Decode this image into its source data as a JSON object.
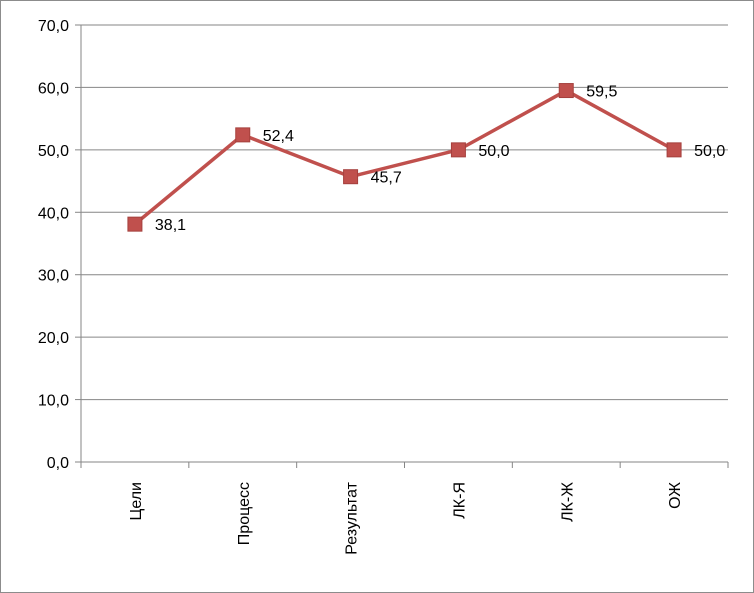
{
  "chart_data": {
    "type": "line",
    "categories": [
      "Цели",
      "Процесс",
      "Результат",
      "ЛК-Я",
      "ЛК-Ж",
      "ОЖ"
    ],
    "series": [
      {
        "values": [
          38.1,
          52.4,
          45.7,
          50.0,
          59.5,
          50.0
        ],
        "labels": [
          "38,1",
          "52,4",
          "45,7",
          "50,0",
          "59,5",
          "50,0"
        ],
        "color": "#C0504D",
        "marker": "square"
      }
    ],
    "ylim": [
      0,
      70
    ],
    "yticks": [
      {
        "value": 0,
        "label": "0,0"
      },
      {
        "value": 10,
        "label": "10,0"
      },
      {
        "value": 20,
        "label": "20,0"
      },
      {
        "value": 30,
        "label": "30,0"
      },
      {
        "value": 40,
        "label": "40,0"
      },
      {
        "value": 50,
        "label": "50,0"
      },
      {
        "value": 60,
        "label": "60,0"
      },
      {
        "value": 70,
        "label": "70,0"
      }
    ],
    "grid": true,
    "legend": "none",
    "xlabel": "",
    "ylabel": "",
    "title": ""
  }
}
